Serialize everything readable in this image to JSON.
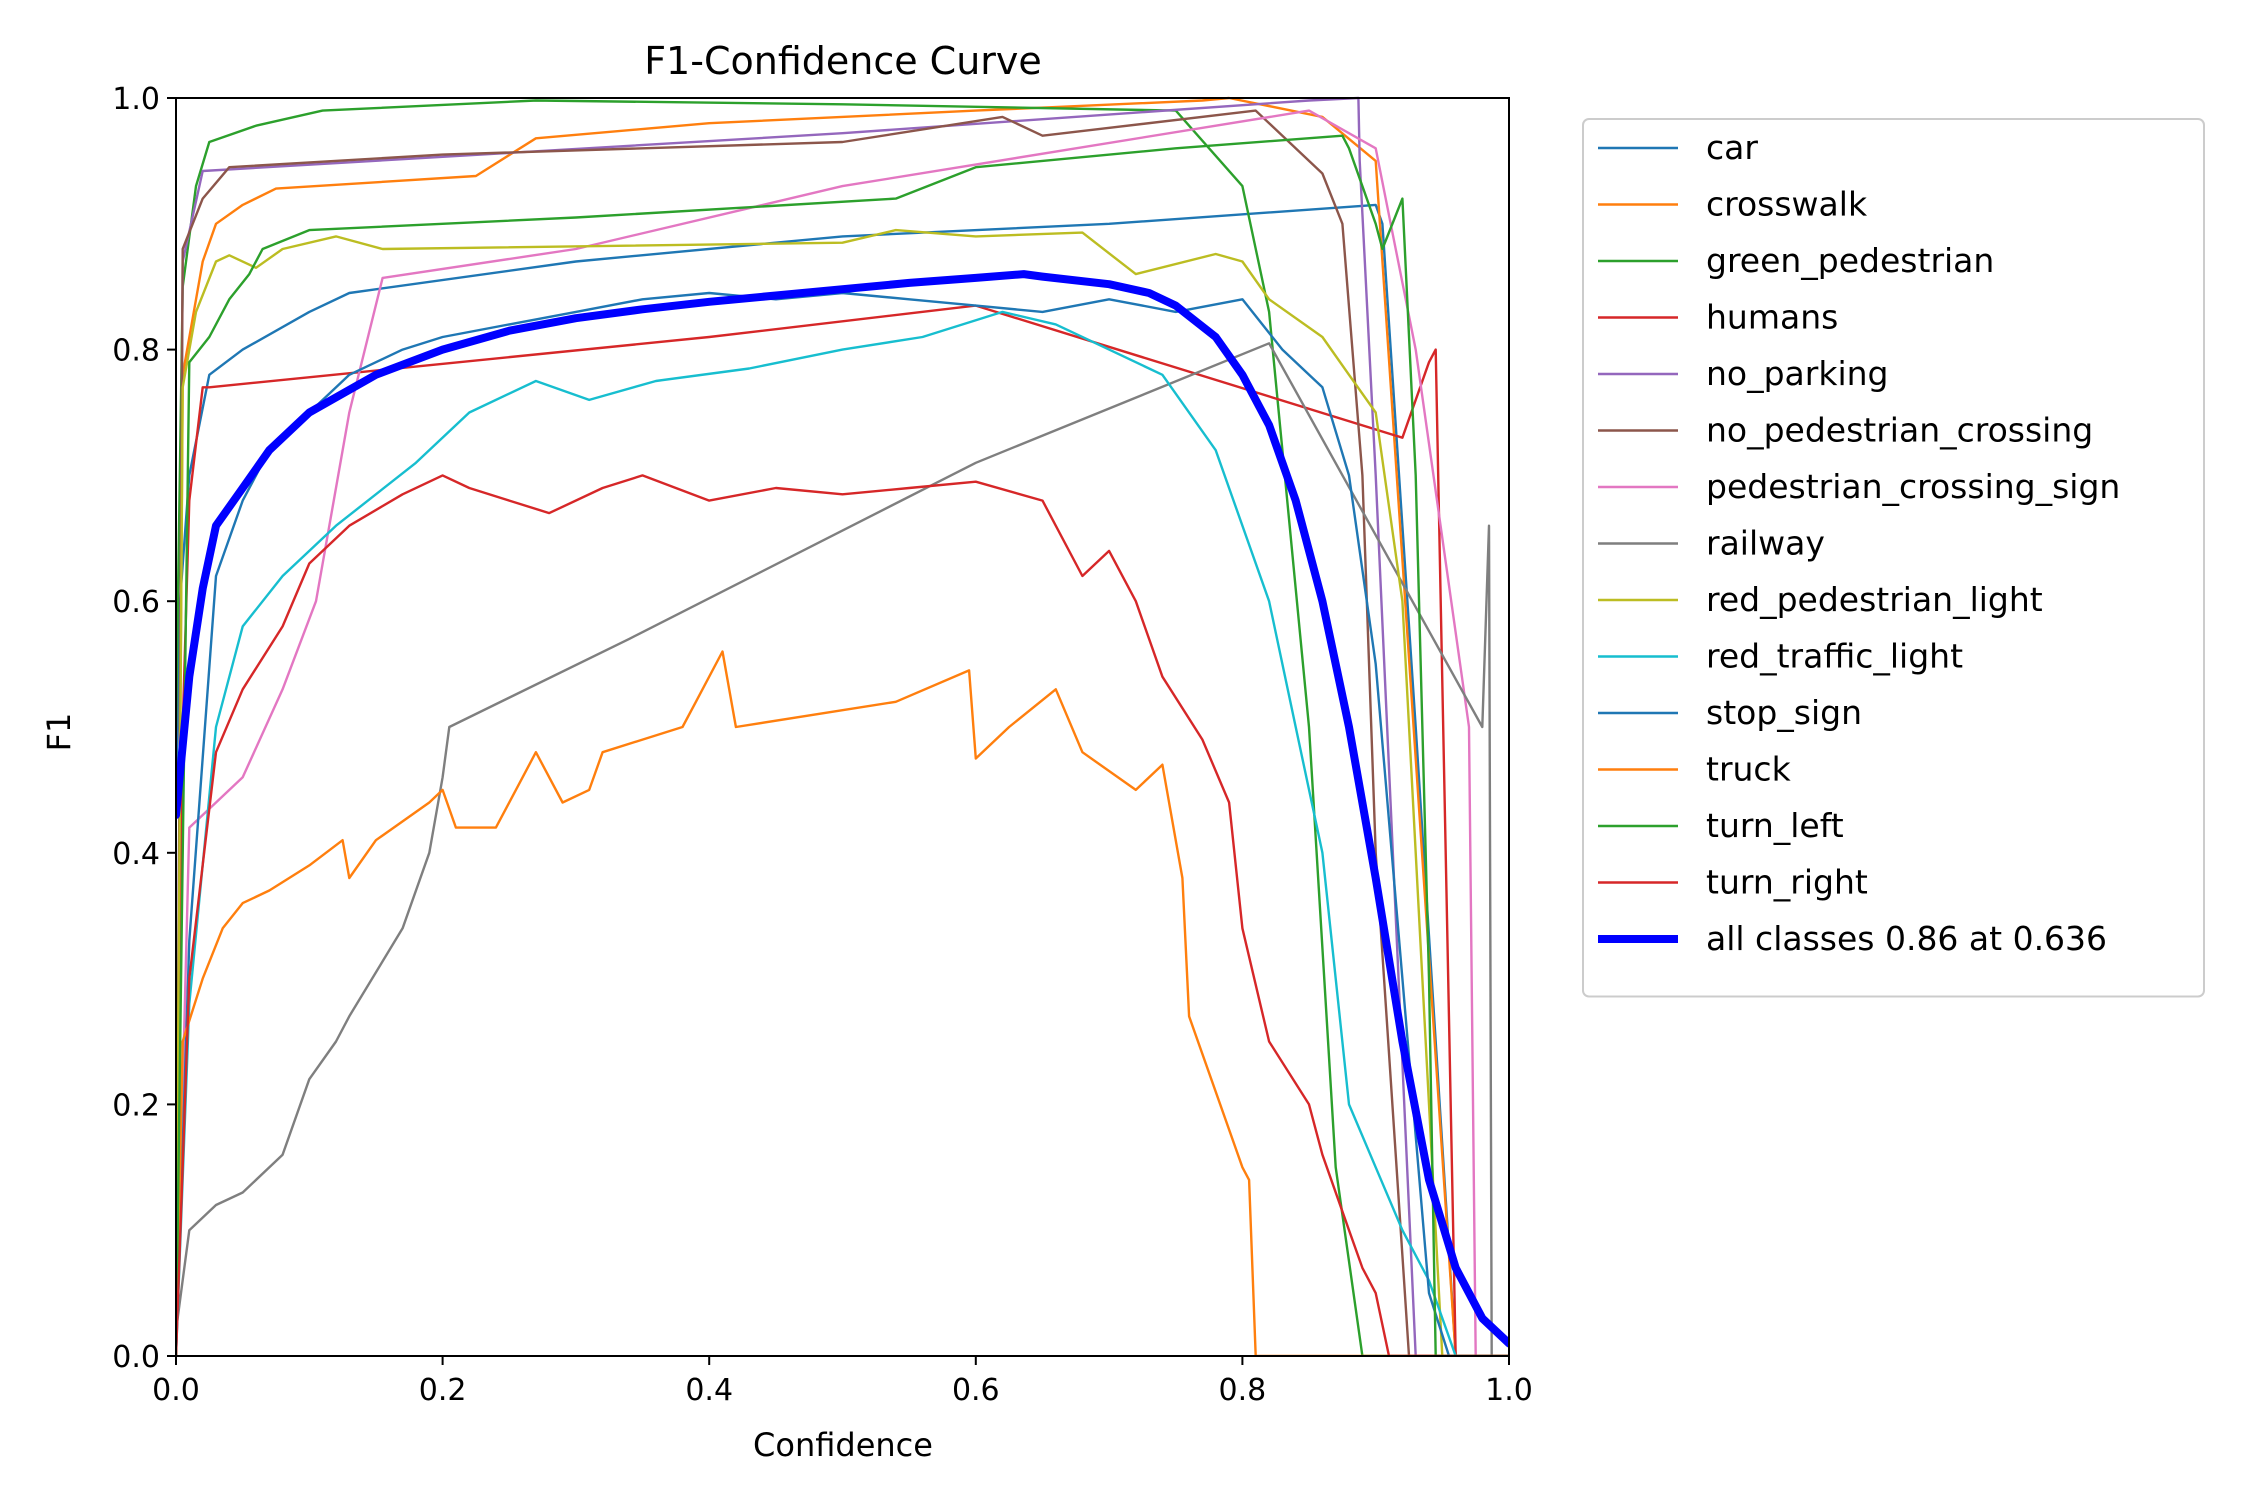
{
  "chart_data": {
    "type": "line",
    "title": "F1-Confidence Curve",
    "xlabel": "Confidence",
    "ylabel": "F1",
    "xlim": [
      0,
      1
    ],
    "ylim": [
      0,
      1
    ],
    "x_ticks": [
      "0.0",
      "0.2",
      "0.4",
      "0.6",
      "0.8",
      "1.0"
    ],
    "y_ticks": [
      "0.0",
      "0.2",
      "0.4",
      "0.6",
      "0.8",
      "1.0"
    ],
    "grid": false,
    "legend_position": "outside-right-top",
    "series": [
      {
        "name": "car",
        "color": "#1f77b4",
        "x": [
          0,
          0.003,
          0.01,
          0.025,
          0.05,
          0.1,
          0.13,
          0.3,
          0.5,
          0.7,
          0.9,
          0.905,
          0.93,
          0.96,
          1.0
        ],
        "y": [
          0.45,
          0.6,
          0.7,
          0.78,
          0.8,
          0.83,
          0.845,
          0.87,
          0.89,
          0.9,
          0.915,
          0.9,
          0.5,
          0.0,
          0.0
        ]
      },
      {
        "name": "crosswalk",
        "color": "#ff7f0e",
        "x": [
          0,
          0.005,
          0.02,
          0.03,
          0.05,
          0.075,
          0.225,
          0.27,
          0.4,
          0.6,
          0.77,
          0.79,
          0.86,
          0.9,
          0.96,
          0.965,
          1.0
        ],
        "y": [
          0.0,
          0.78,
          0.87,
          0.9,
          0.915,
          0.928,
          0.938,
          0.968,
          0.98,
          0.99,
          0.998,
          1.0,
          0.985,
          0.95,
          0.0,
          0.0,
          0.0
        ]
      },
      {
        "name": "green_pedestrian",
        "color": "#2ca02c",
        "x": [
          0,
          0.005,
          0.015,
          0.025,
          0.06,
          0.11,
          0.27,
          0.5,
          0.75,
          0.8,
          0.82,
          0.85,
          0.87,
          0.89,
          0.9,
          1.0
        ],
        "y": [
          0.5,
          0.85,
          0.93,
          0.965,
          0.978,
          0.99,
          0.998,
          0.995,
          0.99,
          0.93,
          0.83,
          0.5,
          0.15,
          0.0,
          0.0,
          0.0
        ]
      },
      {
        "name": "humans",
        "color": "#d62728",
        "x": [
          0,
          0.005,
          0.01,
          0.02,
          0.025,
          0.4,
          0.6,
          0.92,
          0.94,
          0.945,
          0.96,
          1.0
        ],
        "y": [
          0.0,
          0.5,
          0.68,
          0.77,
          0.77,
          0.81,
          0.835,
          0.73,
          0.79,
          0.8,
          0.0,
          0.0
        ]
      },
      {
        "name": "no_parking",
        "color": "#9467bd",
        "x": [
          0,
          0.005,
          0.02,
          0.5,
          0.85,
          0.887,
          0.888,
          0.9,
          0.93,
          1.0
        ],
        "y": [
          0.0,
          0.87,
          0.942,
          0.972,
          0.998,
          1.0,
          0.95,
          0.7,
          0.0,
          0.0
        ]
      },
      {
        "name": "no_pedestrian_crossing",
        "color": "#8c564b",
        "x": [
          0,
          0.005,
          0.02,
          0.04,
          0.2,
          0.5,
          0.62,
          0.65,
          0.81,
          0.83,
          0.86,
          0.875,
          0.89,
          0.9,
          0.92,
          0.925,
          1.0
        ],
        "y": [
          0.0,
          0.88,
          0.92,
          0.945,
          0.955,
          0.965,
          0.985,
          0.97,
          0.99,
          0.97,
          0.94,
          0.9,
          0.7,
          0.4,
          0.08,
          0.0,
          0.0
        ]
      },
      {
        "name": "pedestrian_crossing_sign",
        "color": "#e377c2",
        "x": [
          0,
          0.01,
          0.03,
          0.05,
          0.08,
          0.105,
          0.13,
          0.155,
          0.3,
          0.5,
          0.85,
          0.9,
          0.93,
          0.97,
          0.975,
          1.0
        ],
        "y": [
          0.0,
          0.42,
          0.44,
          0.46,
          0.53,
          0.6,
          0.75,
          0.857,
          0.88,
          0.93,
          0.99,
          0.96,
          0.8,
          0.5,
          0.0,
          0.0
        ]
      },
      {
        "name": "railway",
        "color": "#7f7f7f",
        "x": [
          0,
          0.01,
          0.03,
          0.05,
          0.08,
          0.1,
          0.12,
          0.13,
          0.17,
          0.19,
          0.2,
          0.205,
          0.34,
          0.6,
          0.82,
          0.98,
          0.985,
          0.987,
          1.0
        ],
        "y": [
          0.02,
          0.1,
          0.12,
          0.13,
          0.16,
          0.22,
          0.25,
          0.27,
          0.34,
          0.4,
          0.46,
          0.5,
          0.57,
          0.71,
          0.805,
          0.5,
          0.66,
          0.0,
          0.0
        ]
      },
      {
        "name": "red_pedestrian_light",
        "color": "#bcbd22",
        "x": [
          0,
          0.005,
          0.015,
          0.03,
          0.04,
          0.06,
          0.08,
          0.12,
          0.155,
          0.5,
          0.54,
          0.6,
          0.68,
          0.72,
          0.78,
          0.8,
          0.82,
          0.86,
          0.88,
          0.9,
          0.92,
          0.95,
          1.0
        ],
        "y": [
          0.0,
          0.77,
          0.83,
          0.87,
          0.875,
          0.865,
          0.88,
          0.89,
          0.88,
          0.885,
          0.895,
          0.89,
          0.893,
          0.86,
          0.876,
          0.87,
          0.84,
          0.81,
          0.78,
          0.75,
          0.6,
          0.0,
          0.0
        ]
      },
      {
        "name": "red_traffic_light",
        "color": "#17becf",
        "x": [
          0,
          0.01,
          0.03,
          0.05,
          0.08,
          0.12,
          0.18,
          0.22,
          0.27,
          0.31,
          0.36,
          0.43,
          0.5,
          0.56,
          0.62,
          0.66,
          0.7,
          0.74,
          0.78,
          0.82,
          0.84,
          0.86,
          0.88,
          0.9,
          0.92,
          0.94,
          0.96,
          1.0
        ],
        "y": [
          0.0,
          0.28,
          0.5,
          0.58,
          0.62,
          0.66,
          0.71,
          0.75,
          0.775,
          0.76,
          0.775,
          0.785,
          0.8,
          0.81,
          0.83,
          0.82,
          0.8,
          0.78,
          0.72,
          0.6,
          0.5,
          0.4,
          0.2,
          0.15,
          0.1,
          0.06,
          0.0,
          0.0
        ]
      },
      {
        "name": "stop_sign",
        "color": "#1f77b4",
        "x": [
          0,
          0.01,
          0.03,
          0.05,
          0.07,
          0.1,
          0.13,
          0.17,
          0.2,
          0.25,
          0.3,
          0.35,
          0.4,
          0.45,
          0.5,
          0.55,
          0.6,
          0.65,
          0.7,
          0.75,
          0.8,
          0.83,
          0.86,
          0.88,
          0.9,
          0.92,
          0.94,
          0.955,
          1.0
        ],
        "y": [
          0.0,
          0.33,
          0.62,
          0.68,
          0.72,
          0.75,
          0.78,
          0.8,
          0.81,
          0.82,
          0.83,
          0.84,
          0.845,
          0.84,
          0.845,
          0.84,
          0.835,
          0.83,
          0.84,
          0.83,
          0.84,
          0.8,
          0.77,
          0.7,
          0.55,
          0.3,
          0.05,
          0.0,
          0.0
        ]
      },
      {
        "name": "truck",
        "color": "#ff7f0e",
        "x": [
          0,
          0.005,
          0.02,
          0.035,
          0.05,
          0.07,
          0.1,
          0.125,
          0.13,
          0.15,
          0.19,
          0.2,
          0.21,
          0.24,
          0.26,
          0.27,
          0.29,
          0.31,
          0.32,
          0.35,
          0.38,
          0.39,
          0.41,
          0.42,
          0.54,
          0.595,
          0.6,
          0.625,
          0.66,
          0.68,
          0.72,
          0.74,
          0.755,
          0.76,
          0.8,
          0.805,
          0.81,
          1.0
        ],
        "y": [
          0.0,
          0.25,
          0.3,
          0.34,
          0.36,
          0.37,
          0.39,
          0.41,
          0.38,
          0.41,
          0.44,
          0.45,
          0.42,
          0.42,
          0.46,
          0.48,
          0.44,
          0.45,
          0.48,
          0.49,
          0.5,
          0.52,
          0.56,
          0.5,
          0.52,
          0.545,
          0.475,
          0.5,
          0.53,
          0.48,
          0.45,
          0.47,
          0.38,
          0.27,
          0.15,
          0.14,
          0.0,
          0.0
        ]
      },
      {
        "name": "turn_left",
        "color": "#2ca02c",
        "x": [
          0,
          0.01,
          0.025,
          0.04,
          0.055,
          0.065,
          0.1,
          0.3,
          0.54,
          0.6,
          0.75,
          0.875,
          0.88,
          0.9,
          0.905,
          0.92,
          0.93,
          0.94,
          0.945,
          1.0
        ],
        "y": [
          0.0,
          0.79,
          0.81,
          0.84,
          0.86,
          0.88,
          0.895,
          0.905,
          0.92,
          0.945,
          0.96,
          0.97,
          0.96,
          0.9,
          0.88,
          0.92,
          0.7,
          0.3,
          0.0,
          0.0
        ]
      },
      {
        "name": "turn_right",
        "color": "#d62728",
        "x": [
          0,
          0.01,
          0.03,
          0.05,
          0.08,
          0.1,
          0.13,
          0.17,
          0.2,
          0.22,
          0.25,
          0.28,
          0.32,
          0.35,
          0.4,
          0.45,
          0.5,
          0.55,
          0.6,
          0.65,
          0.68,
          0.7,
          0.72,
          0.74,
          0.77,
          0.79,
          0.8,
          0.82,
          0.85,
          0.86,
          0.88,
          0.89,
          0.9,
          0.91,
          1.0
        ],
        "y": [
          0.0,
          0.3,
          0.48,
          0.53,
          0.58,
          0.63,
          0.66,
          0.685,
          0.7,
          0.69,
          0.68,
          0.67,
          0.69,
          0.7,
          0.68,
          0.69,
          0.685,
          0.69,
          0.695,
          0.68,
          0.62,
          0.64,
          0.6,
          0.54,
          0.49,
          0.44,
          0.34,
          0.25,
          0.2,
          0.16,
          0.1,
          0.07,
          0.05,
          0.0,
          0.0
        ]
      },
      {
        "name": "all classes 0.86 at 0.636",
        "color": "#0000ff",
        "bold": true,
        "x": [
          0,
          0.01,
          0.02,
          0.03,
          0.05,
          0.07,
          0.1,
          0.15,
          0.2,
          0.25,
          0.3,
          0.35,
          0.4,
          0.45,
          0.5,
          0.55,
          0.6,
          0.636,
          0.65,
          0.7,
          0.73,
          0.75,
          0.78,
          0.8,
          0.82,
          0.84,
          0.86,
          0.88,
          0.9,
          0.92,
          0.94,
          0.96,
          0.98,
          1.0
        ],
        "y": [
          0.43,
          0.54,
          0.61,
          0.66,
          0.69,
          0.72,
          0.75,
          0.78,
          0.8,
          0.815,
          0.825,
          0.832,
          0.838,
          0.843,
          0.848,
          0.853,
          0.857,
          0.86,
          0.858,
          0.852,
          0.845,
          0.835,
          0.81,
          0.78,
          0.74,
          0.68,
          0.6,
          0.5,
          0.38,
          0.25,
          0.14,
          0.07,
          0.03,
          0.01
        ]
      }
    ]
  }
}
